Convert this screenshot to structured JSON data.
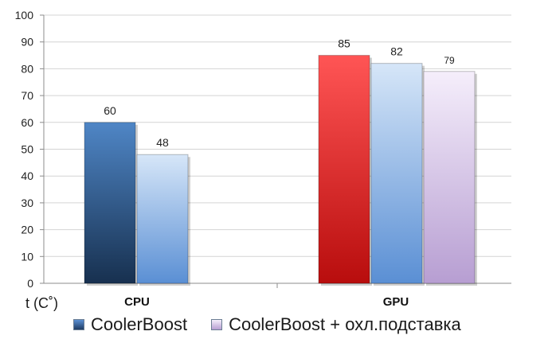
{
  "chart_data": {
    "type": "bar",
    "y_axis_label": "t (C˚)",
    "ylim": [
      0,
      100
    ],
    "y_ticks": [
      0,
      10,
      20,
      30,
      40,
      50,
      60,
      70,
      80,
      90,
      100
    ],
    "grid": true,
    "legend_position": "bottom",
    "groups": [
      {
        "category": "CPU",
        "bars": [
          {
            "series": "CoolerBoost",
            "value": 60,
            "label": "60",
            "color": "#3a6aa6"
          },
          {
            "series": "CoolerBoost + охл.подставка",
            "value": 48,
            "label": "48",
            "color": "#9dc0e8"
          }
        ]
      },
      {
        "category": "GPU",
        "bars": [
          {
            "series": "CoolerBoost",
            "value": 85,
            "label": "85",
            "color": "#e03030"
          },
          {
            "series": "CoolerBoost + охл.подставка",
            "value": 82,
            "label": "82",
            "color": "#9dc0e8"
          },
          {
            "series": "CoolerBoost + охл.подставка",
            "value": 79,
            "label": "79",
            "color": "#d7c6e6"
          }
        ]
      }
    ],
    "legend": [
      {
        "name": "CoolerBoost",
        "color": "#3a6aa6"
      },
      {
        "name": "CoolerBoost + охл.подставка",
        "color": "#d7c6e6"
      }
    ]
  }
}
